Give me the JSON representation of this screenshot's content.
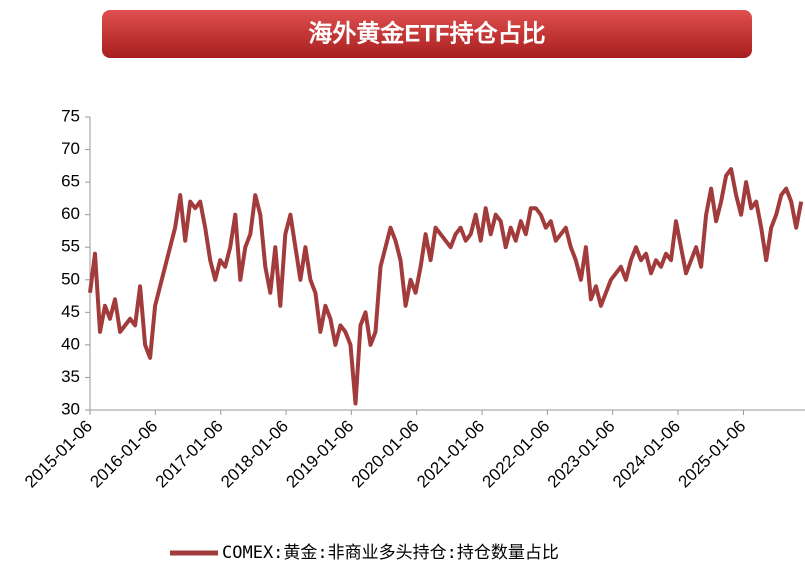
{
  "chart_data": {
    "type": "line",
    "title": "海外黄金ETF持仓占比",
    "x": [
      "2015-01-06",
      "2015-02-03",
      "2015-03-03",
      "2015-03-31",
      "2015-04-28",
      "2015-05-26",
      "2015-06-23",
      "2015-07-21",
      "2015-08-18",
      "2015-09-15",
      "2015-10-13",
      "2015-11-10",
      "2015-12-08",
      "2016-01-05",
      "2016-02-02",
      "2016-03-01",
      "2016-03-29",
      "2016-04-26",
      "2016-05-24",
      "2016-06-21",
      "2016-07-19",
      "2016-08-16",
      "2016-09-13",
      "2016-10-11",
      "2016-11-08",
      "2016-12-06",
      "2017-01-03",
      "2017-01-31",
      "2017-02-28",
      "2017-03-28",
      "2017-04-25",
      "2017-05-23",
      "2017-06-20",
      "2017-07-18",
      "2017-08-15",
      "2017-09-12",
      "2017-10-10",
      "2017-11-07",
      "2017-12-05",
      "2018-01-02",
      "2018-01-30",
      "2018-02-27",
      "2018-03-27",
      "2018-04-24",
      "2018-05-22",
      "2018-06-19",
      "2018-07-17",
      "2018-08-14",
      "2018-09-11",
      "2018-10-09",
      "2018-11-06",
      "2018-12-04",
      "2019-01-01",
      "2019-01-29",
      "2019-02-26",
      "2019-03-26",
      "2019-04-23",
      "2019-05-21",
      "2019-06-18",
      "2019-07-16",
      "2019-08-13",
      "2019-09-10",
      "2019-10-08",
      "2019-11-05",
      "2019-12-03",
      "2019-12-31",
      "2020-01-28",
      "2020-02-25",
      "2020-03-24",
      "2020-04-21",
      "2020-05-19",
      "2020-06-16",
      "2020-07-14",
      "2020-08-11",
      "2020-09-08",
      "2020-10-06",
      "2020-11-03",
      "2020-12-01",
      "2020-12-29",
      "2021-01-26",
      "2021-02-23",
      "2021-03-23",
      "2021-04-20",
      "2021-05-18",
      "2021-06-15",
      "2021-07-13",
      "2021-08-10",
      "2021-09-07",
      "2021-10-05",
      "2021-11-02",
      "2021-11-30",
      "2021-12-28",
      "2022-01-25",
      "2022-02-22",
      "2022-03-22",
      "2022-04-19",
      "2022-05-17",
      "2022-06-14",
      "2022-07-12",
      "2022-08-09",
      "2022-09-06",
      "2022-10-04",
      "2022-11-01",
      "2022-11-29",
      "2022-12-27",
      "2023-01-24",
      "2023-02-21",
      "2023-03-21",
      "2023-04-18",
      "2023-05-16",
      "2023-06-13",
      "2023-07-11",
      "2023-08-08",
      "2023-09-05",
      "2023-10-03",
      "2023-10-31",
      "2023-11-28",
      "2023-12-26",
      "2024-01-23",
      "2024-02-20",
      "2024-03-19",
      "2024-04-16",
      "2024-05-14",
      "2024-06-11",
      "2024-07-09",
      "2024-08-06",
      "2024-09-03",
      "2024-10-01",
      "2024-10-29",
      "2024-11-26",
      "2024-12-24",
      "2025-01-21",
      "2025-02-18",
      "2025-03-18",
      "2025-04-15",
      "2025-05-13",
      "2025-06-10",
      "2025-07-08",
      "2025-08-05",
      "2025-09-02",
      "2025-09-30",
      "2025-10-28",
      "2025-11-25"
    ],
    "series": [
      {
        "name": "COMEX:黄金:非商业多头持仓:持仓数量占比",
        "color": "#a23b3b",
        "values": [
          48,
          54,
          42,
          46,
          44,
          47,
          42,
          43,
          44,
          43,
          49,
          40,
          38,
          46,
          49,
          52,
          55,
          58,
          63,
          56,
          62,
          61,
          62,
          58,
          53,
          50,
          53,
          52,
          55,
          60,
          50,
          55,
          57,
          63,
          60,
          52,
          48,
          55,
          46,
          57,
          60,
          55,
          50,
          55,
          50,
          48,
          42,
          46,
          44,
          40,
          43,
          42,
          40,
          31,
          43,
          45,
          40,
          42,
          52,
          55,
          58,
          56,
          53,
          46,
          50,
          48,
          52,
          57,
          53,
          58,
          57,
          56,
          55,
          57,
          58,
          56,
          57,
          60,
          56,
          61,
          57,
          60,
          59,
          55,
          58,
          56,
          59,
          57,
          61,
          61,
          60,
          58,
          59,
          56,
          57,
          58,
          55,
          53,
          50,
          55,
          47,
          49,
          46,
          48,
          50,
          51,
          52,
          50,
          53,
          55,
          53,
          54,
          51,
          53,
          52,
          54,
          53,
          59,
          55,
          51,
          53,
          55,
          52,
          60,
          64,
          59,
          62,
          66,
          67,
          63,
          60,
          65,
          61,
          62,
          58,
          53,
          58,
          60,
          63,
          64,
          62,
          58,
          62
        ]
      }
    ],
    "xlim": [
      "2015-01-06",
      "2025-12-16"
    ],
    "xticks": [
      "2015-01-06",
      "2016-01-06",
      "2017-01-06",
      "2018-01-06",
      "2019-01-06",
      "2020-01-06",
      "2021-01-06",
      "2022-01-06",
      "2023-01-06",
      "2024-01-06",
      "2025-01-06"
    ],
    "ylim": [
      30,
      75
    ],
    "yticks": [
      30,
      35,
      40,
      45,
      50,
      55,
      60,
      65,
      70,
      75
    ],
    "grid": false,
    "legend": "bottom"
  }
}
